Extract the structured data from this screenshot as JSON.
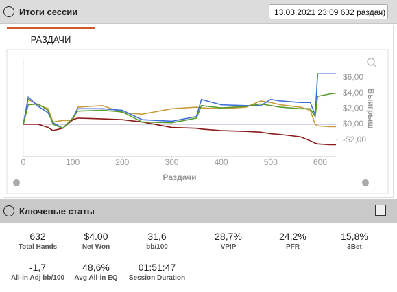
{
  "header": {
    "title": "Итоги сессии",
    "session_select": "13.03.2021 23:09 632 раздач)"
  },
  "tabs": [
    "РАЗДАЧИ"
  ],
  "chart_data": {
    "type": "line",
    "x_label": "Раздачи",
    "y_label": "Выигрыш",
    "x": [
      0,
      10,
      30,
      50,
      60,
      80,
      100,
      110,
      160,
      200,
      240,
      300,
      350,
      360,
      400,
      450,
      480,
      500,
      520,
      560,
      580,
      590,
      595,
      620,
      632
    ],
    "series": [
      {
        "color": "#c89a3a",
        "values": [
          0,
          3.2,
          2.5,
          2.0,
          0.3,
          0.5,
          0.5,
          2.2,
          2.4,
          1.5,
          1.3,
          2.0,
          2.2,
          2.1,
          2.0,
          2.2,
          3.0,
          2.8,
          2.5,
          2.2,
          1.8,
          0.0,
          -0.2,
          -0.3,
          -0.3
        ]
      },
      {
        "color": "#8b1a1a",
        "values": [
          0,
          0,
          0,
          -0.4,
          -0.8,
          -0.5,
          0.6,
          0.8,
          0.7,
          0.6,
          0.3,
          -0.4,
          -0.5,
          -0.6,
          -0.8,
          -0.9,
          -1.0,
          -1.2,
          -1.3,
          -1.6,
          -2.1,
          -2.4,
          -2.5,
          -2.6,
          -2.6
        ]
      },
      {
        "color": "#3f6fd8",
        "values": [
          0,
          3.5,
          2.3,
          1.5,
          0.2,
          -0.5,
          0.8,
          2.0,
          2.0,
          1.8,
          0.6,
          0.4,
          1.0,
          3.2,
          2.5,
          2.4,
          2.4,
          3.2,
          3.0,
          2.8,
          2.8,
          1.2,
          6.5,
          6.5,
          6.5
        ]
      },
      {
        "color": "#5a9a2a",
        "values": [
          0,
          2.5,
          2.6,
          1.8,
          0.0,
          -0.5,
          0.8,
          1.7,
          1.8,
          1.6,
          0.3,
          0.2,
          0.8,
          2.4,
          2.1,
          2.3,
          2.6,
          2.4,
          2.2,
          2.0,
          2.0,
          1.0,
          3.6,
          3.9,
          4.0
        ]
      }
    ],
    "xlim": [
      0,
      632
    ],
    "ylim": [
      -4.1,
      8.4
    ],
    "xticks": [
      0,
      100,
      200,
      300,
      400,
      500,
      600
    ],
    "yticks": [
      {
        "value": -2,
        "label": "-$2,00"
      },
      {
        "value": 0,
        "label": "$0,00"
      },
      {
        "value": 2,
        "label": "$2,00"
      },
      {
        "value": 4,
        "label": "$4,00"
      },
      {
        "value": 6,
        "label": "$6,00"
      }
    ],
    "grid": false
  },
  "stats_title": "Ключевые статы",
  "stats": [
    {
      "value": "632",
      "label": "Total Hands"
    },
    {
      "value": "$4.00",
      "label": "Net Won"
    },
    {
      "value": "31,6",
      "label": "bb/100"
    },
    {
      "value": "28,7%",
      "label": "VPIP"
    },
    {
      "value": "24,2%",
      "label": "PFR"
    },
    {
      "value": "15,8%",
      "label": "3Bet"
    },
    {
      "value": "-1,7",
      "label": "All-in Adj bb/100"
    },
    {
      "value": "48,6%",
      "label": "Avg All-in EQ"
    },
    {
      "value": "01:51:47",
      "label": "Session Duration"
    }
  ]
}
